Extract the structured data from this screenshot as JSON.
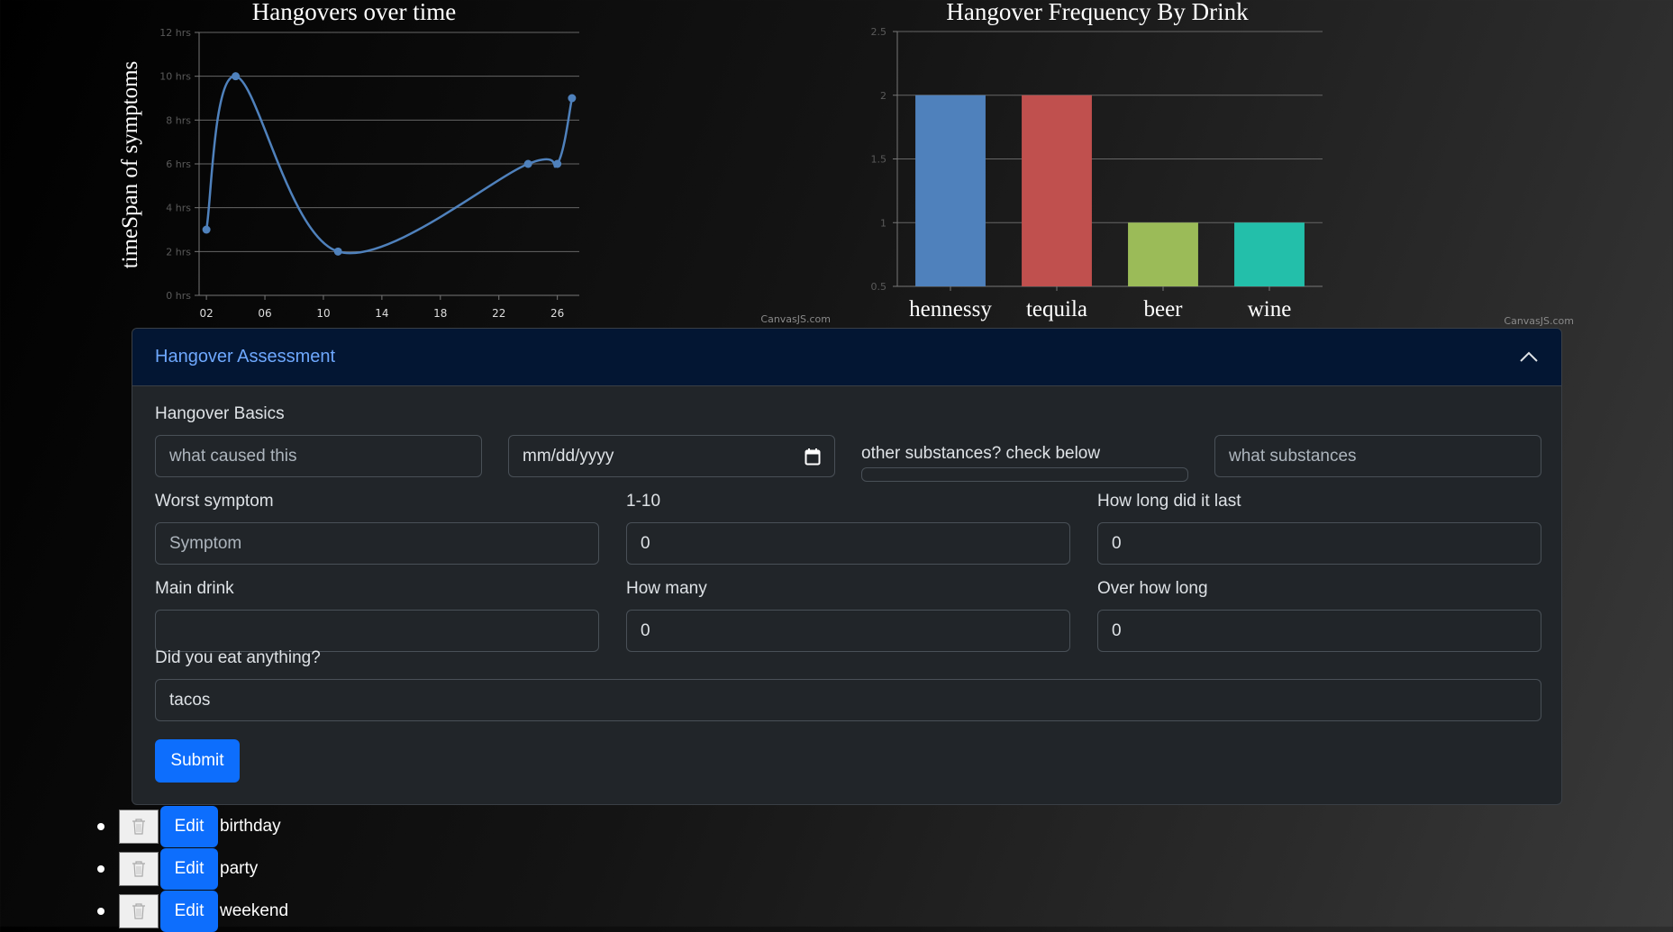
{
  "line_chart": {
    "title": "Hangovers over time",
    "credit": "CanvasJS.com",
    "chart_data": {
      "type": "line",
      "title": "Hangovers over time",
      "ylabel": "timeSpan of symptoms",
      "ytick_labels": [
        "0 hrs",
        "2 hrs",
        "4 hrs",
        "6 hrs",
        "8 hrs",
        "10 hrs",
        "12 hrs"
      ],
      "ylim": [
        0,
        12
      ],
      "xtick_labels": [
        "02",
        "06",
        "10",
        "14",
        "18",
        "22",
        "26"
      ],
      "xlim": [
        1.5,
        27.5
      ],
      "x": [
        2,
        4,
        11,
        24,
        26,
        27
      ],
      "y": [
        3,
        10,
        2,
        6,
        6,
        9
      ],
      "color": "#4f81bc"
    }
  },
  "bar_chart": {
    "title": "Hangover Frequency By Drink",
    "credit": "CanvasJS.com",
    "chart_data": {
      "type": "bar",
      "title": "Hangover Frequency By Drink",
      "categories": [
        "hennessy",
        "tequila",
        "beer",
        "wine"
      ],
      "values": [
        2,
        2,
        1,
        1
      ],
      "colors": [
        "#4f81bc",
        "#c0504e",
        "#9bbb58",
        "#23bfaa"
      ],
      "ylim": [
        0.5,
        2.5
      ],
      "ytick_labels": [
        "0.5",
        "1",
        "1.5",
        "2",
        "2.5"
      ]
    }
  },
  "form": {
    "header": "Hangover Assessment",
    "basics_label": "Hangover Basics",
    "cause_placeholder": "what caused this",
    "date_placeholder": "mm/dd/yyyy",
    "other_substances_label": "other substances? check below",
    "substances_placeholder": "what substances",
    "worst_symptom_label": "Worst symptom",
    "symptom_placeholder": "Symptom",
    "rating_label": "1-10",
    "rating_value": "0",
    "duration_label": "How long did it last",
    "duration_value": "0",
    "main_drink_label": "Main drink",
    "main_drink_value": "",
    "how_many_label": "How many",
    "how_many_value": "0",
    "over_how_long_label": "Over how long",
    "over_how_long_value": "0",
    "ate_label": "Did you eat anything?",
    "ate_value": "tacos",
    "submit_label": "Submit"
  },
  "entries": [
    {
      "label": "birthday",
      "edit_label": "Edit"
    },
    {
      "label": "party",
      "edit_label": "Edit"
    },
    {
      "label": "weekend",
      "edit_label": "Edit"
    }
  ]
}
